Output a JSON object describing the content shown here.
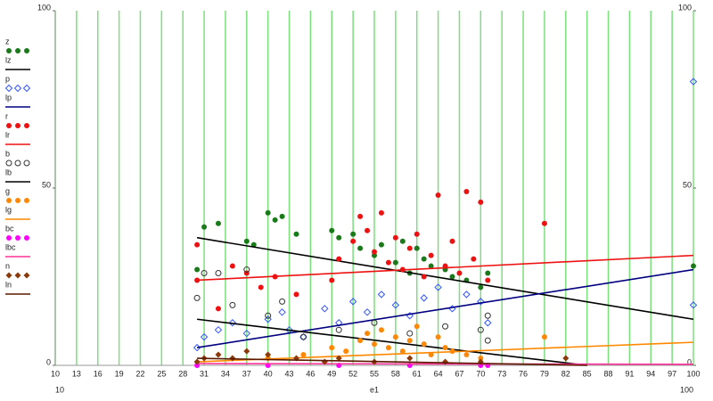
{
  "chart_data": {
    "type": "scatter",
    "x_label": "e1",
    "xlim": [
      10,
      100
    ],
    "xticks": [
      10,
      13,
      16,
      19,
      22,
      25,
      28,
      31,
      34,
      37,
      40,
      43,
      46,
      49,
      52,
      55,
      58,
      61,
      64,
      67,
      70,
      73,
      76,
      79,
      82,
      85,
      88,
      91,
      94,
      97,
      100
    ],
    "ylim": [
      0,
      100
    ],
    "yticks": [
      0,
      50,
      100
    ],
    "grid": true,
    "grid_color": "#7be07b",
    "legend": "left",
    "series": [
      {
        "name": "z",
        "color": "#1a7a1a",
        "marker": "dot",
        "x": [
          30,
          31,
          33,
          37,
          38,
          40,
          41,
          42,
          44,
          49,
          50,
          52,
          53,
          55,
          56,
          58,
          59,
          60,
          61,
          62,
          63,
          65,
          66,
          68,
          70,
          71,
          100
        ],
        "y": [
          27,
          39,
          40,
          35,
          34,
          43,
          41,
          42,
          37,
          38,
          36,
          37,
          33,
          31,
          34,
          29,
          35,
          26,
          33,
          30,
          28,
          27,
          25,
          24,
          22,
          26,
          28
        ]
      },
      {
        "name": "lz",
        "color": "#000000",
        "marker": "line",
        "x": [
          30,
          100
        ],
        "y": [
          36,
          13
        ]
      },
      {
        "name": "p",
        "color": "#3355ff",
        "marker": "diamond-open",
        "x": [
          30,
          31,
          33,
          35,
          37,
          40,
          42,
          43,
          45,
          48,
          50,
          52,
          54,
          56,
          58,
          60,
          62,
          64,
          66,
          68,
          70,
          71,
          100,
          100
        ],
        "y": [
          5,
          8,
          10,
          12,
          9,
          13,
          15,
          10,
          8,
          16,
          12,
          18,
          15,
          20,
          17,
          14,
          19,
          22,
          16,
          20,
          18,
          12,
          80,
          17
        ]
      },
      {
        "name": "lp",
        "color": "#000080",
        "marker": "line",
        "x": [
          30,
          100
        ],
        "y": [
          5,
          27
        ]
      },
      {
        "name": "r",
        "color": "#ee1111",
        "marker": "dot",
        "x": [
          30,
          30,
          33,
          35,
          37,
          39,
          41,
          44,
          49,
          50,
          52,
          53,
          54,
          55,
          56,
          57,
          58,
          59,
          60,
          61,
          62,
          63,
          64,
          65,
          66,
          67,
          68,
          69,
          70,
          71,
          79
        ],
        "y": [
          34,
          24,
          16,
          28,
          26,
          22,
          25,
          20,
          24,
          30,
          35,
          42,
          38,
          32,
          43,
          29,
          36,
          27,
          33,
          37,
          25,
          31,
          48,
          28,
          35,
          26,
          49,
          30,
          46,
          24,
          40
        ]
      },
      {
        "name": "lr",
        "color": "#ee1111",
        "marker": "line",
        "x": [
          30,
          100
        ],
        "y": [
          24,
          31
        ]
      },
      {
        "name": "b",
        "color": "#333333",
        "marker": "circle-open",
        "x": [
          30,
          31,
          33,
          35,
          37,
          40,
          42,
          45,
          50,
          55,
          60,
          65,
          70,
          71,
          71
        ],
        "y": [
          19,
          26,
          26,
          17,
          27,
          14,
          18,
          8,
          10,
          12,
          9,
          11,
          10,
          14,
          7
        ]
      },
      {
        "name": "lb",
        "color": "#000000",
        "marker": "line",
        "x": [
          30,
          85
        ],
        "y": [
          13,
          0
        ]
      },
      {
        "name": "g",
        "color": "#ff8800",
        "marker": "dot",
        "x": [
          40,
          45,
          49,
          51,
          53,
          54,
          55,
          56,
          57,
          58,
          59,
          60,
          61,
          62,
          63,
          64,
          65,
          66,
          68,
          70,
          79
        ],
        "y": [
          2,
          3,
          5,
          4,
          7,
          9,
          6,
          10,
          5,
          8,
          4,
          7,
          11,
          6,
          3,
          8,
          5,
          4,
          3,
          2,
          8
        ]
      },
      {
        "name": "lg",
        "color": "#ff8800",
        "marker": "line",
        "x": [
          30,
          100
        ],
        "y": [
          1,
          6.5
        ]
      },
      {
        "name": "bc",
        "color": "#ff00ff",
        "marker": "dot",
        "x": [
          30,
          40,
          50,
          60,
          70,
          71
        ],
        "y": [
          0,
          0,
          0,
          0,
          0,
          0
        ]
      },
      {
        "name": "lbc",
        "color": "#ff3399",
        "marker": "line",
        "x": [
          30,
          100
        ],
        "y": [
          0.5,
          0.3
        ]
      },
      {
        "name": "n",
        "color": "#8b3a0a",
        "marker": "diamond",
        "x": [
          30,
          31,
          33,
          35,
          37,
          40,
          44,
          48,
          50,
          55,
          60,
          65,
          70,
          82
        ],
        "y": [
          1,
          2,
          3,
          2,
          4,
          3,
          2,
          1,
          2,
          1,
          2,
          1,
          1,
          2
        ]
      },
      {
        "name": "ln",
        "color": "#5a1a00",
        "marker": "line",
        "x": [
          30,
          85
        ],
        "y": [
          2,
          0
        ]
      }
    ]
  }
}
